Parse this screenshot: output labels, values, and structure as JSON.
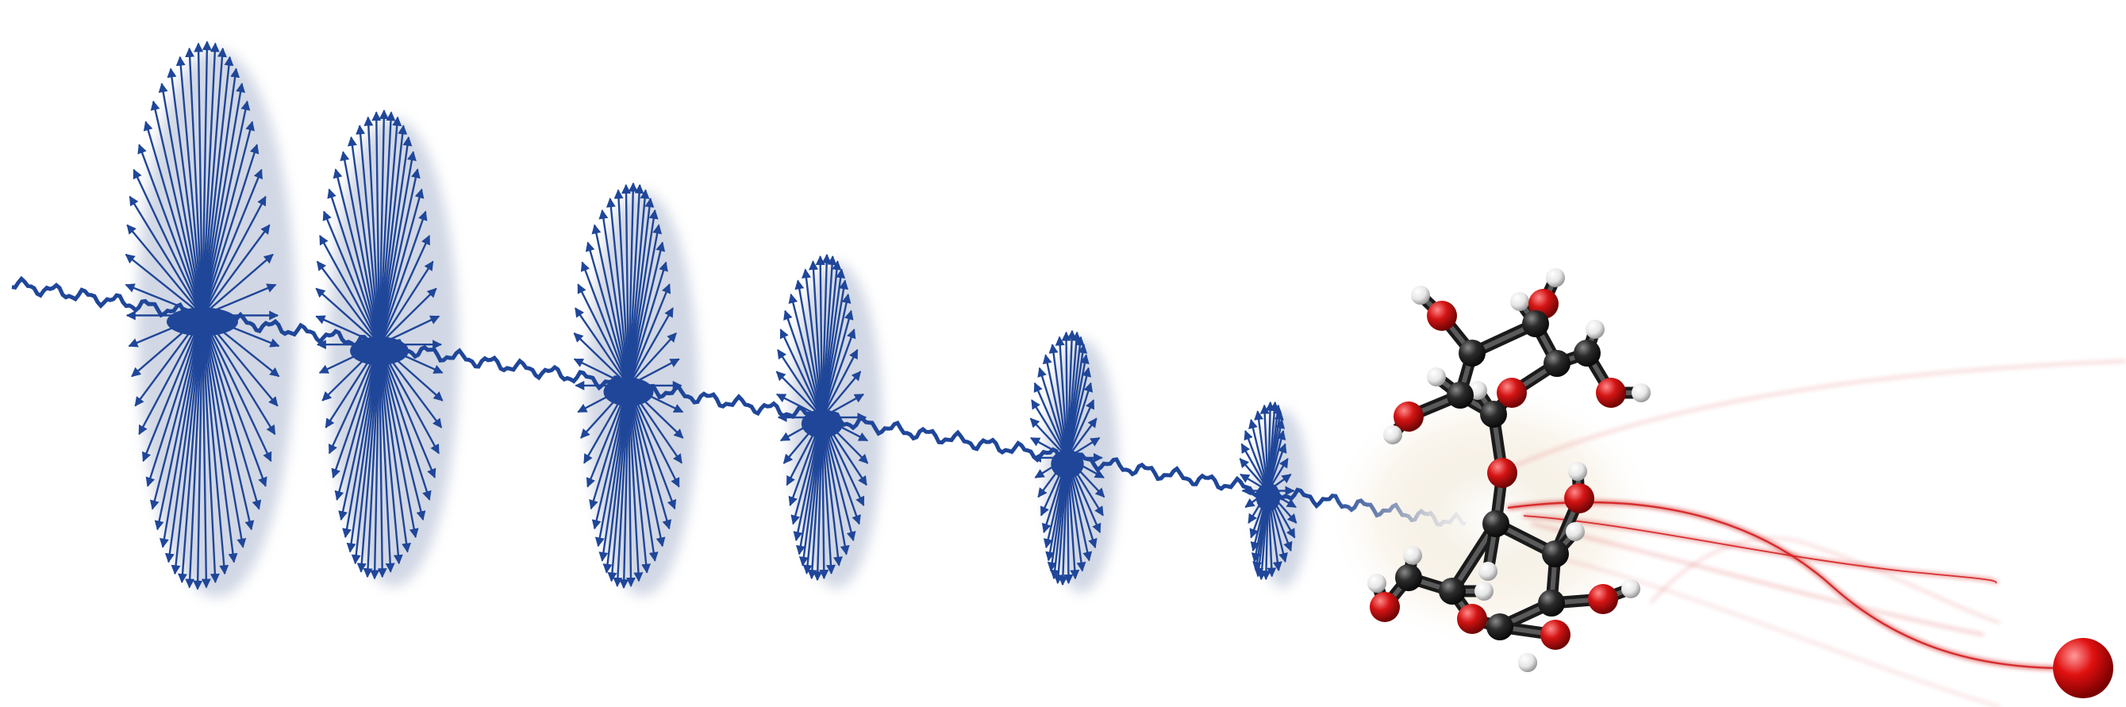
{
  "scene": {
    "subject": "circularly-polarized-light-pulse-hitting-disaccharide-molecule",
    "colors": {
      "background": "#ffffff",
      "pulse": "#1f4699",
      "pulse_shadow": "#9aa7c4",
      "oxygen": "#d41414",
      "carbon": "#2b2b2b",
      "hydrogen": "#f2f2f2",
      "electron": "#e01010",
      "trail": "#d42020"
    }
  }
}
